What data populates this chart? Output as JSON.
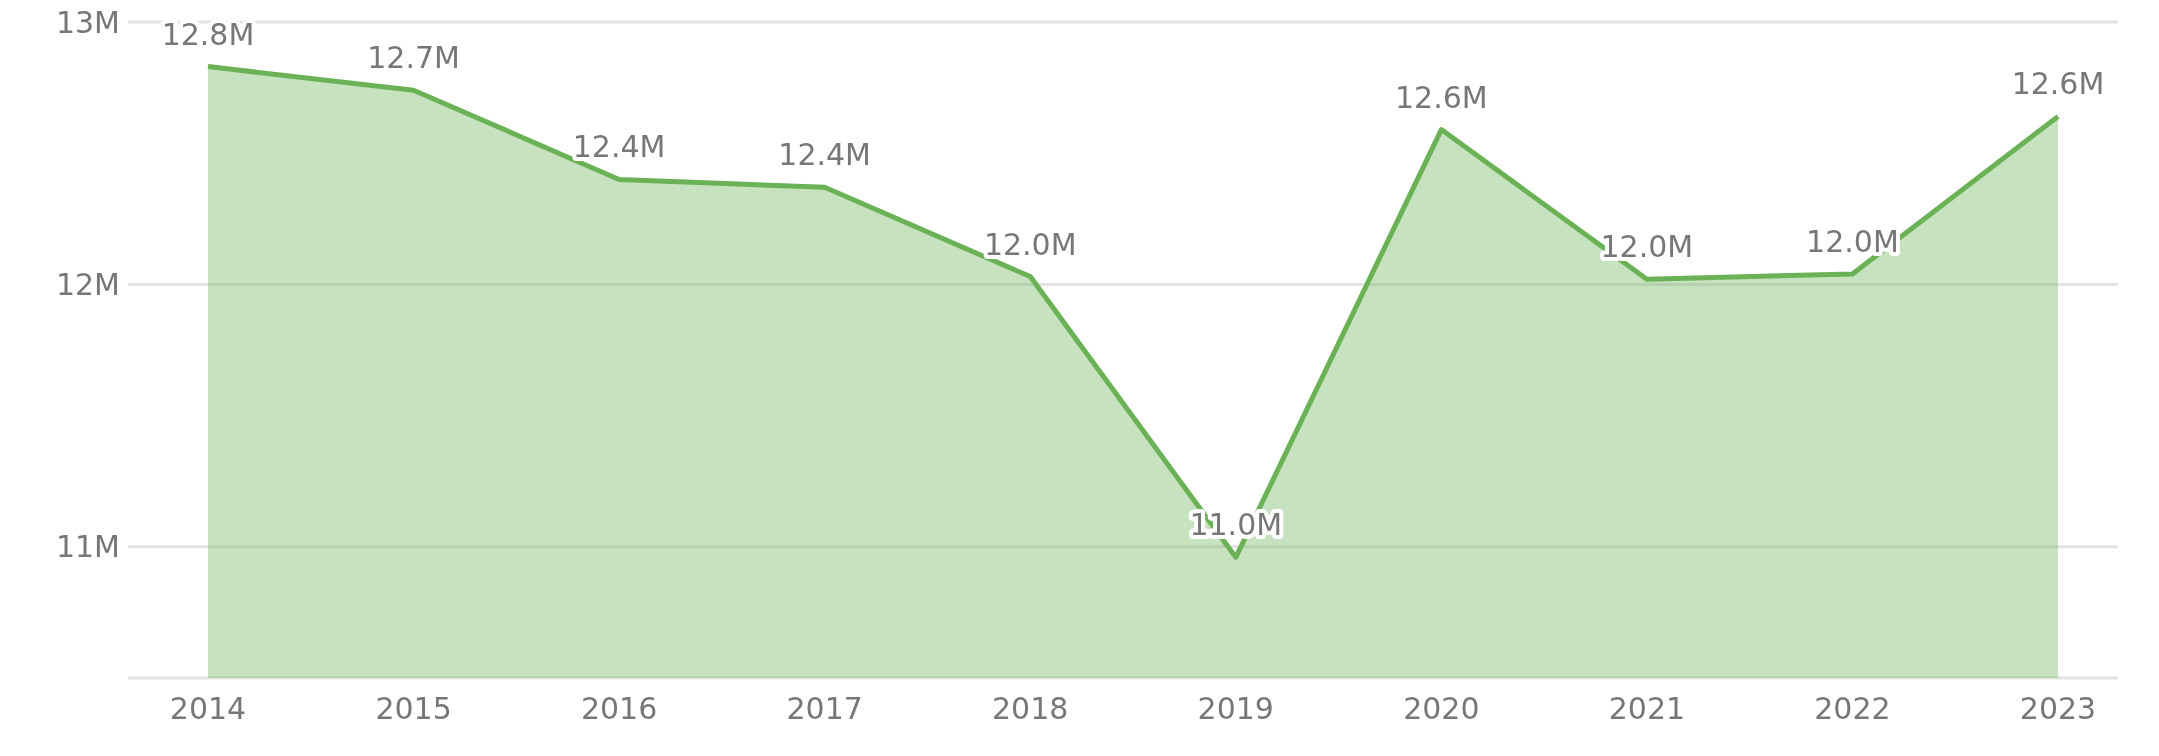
{
  "chart_data": {
    "type": "area",
    "categories": [
      "2014",
      "2015",
      "2016",
      "2017",
      "2018",
      "2019",
      "2020",
      "2021",
      "2022",
      "2023"
    ],
    "series": [
      {
        "color": "#6ab255",
        "values": [
          12.83,
          12.74,
          12.4,
          12.37,
          12.03,
          10.96,
          12.59,
          12.02,
          12.04,
          12.64
        ],
        "value_labels": [
          "12.8M",
          "12.7M",
          "12.4M",
          "12.4M",
          "12.0M",
          "11.0M",
          "12.6M",
          "12.0M",
          "12.0M",
          "12.6M"
        ]
      }
    ],
    "ylim": [
      10.5,
      13
    ],
    "yticks": [
      {
        "value": 11,
        "label": "11M"
      },
      {
        "value": 12,
        "label": "12M"
      },
      {
        "value": 13,
        "label": "13M"
      }
    ],
    "grid": "y",
    "legend": false
  }
}
